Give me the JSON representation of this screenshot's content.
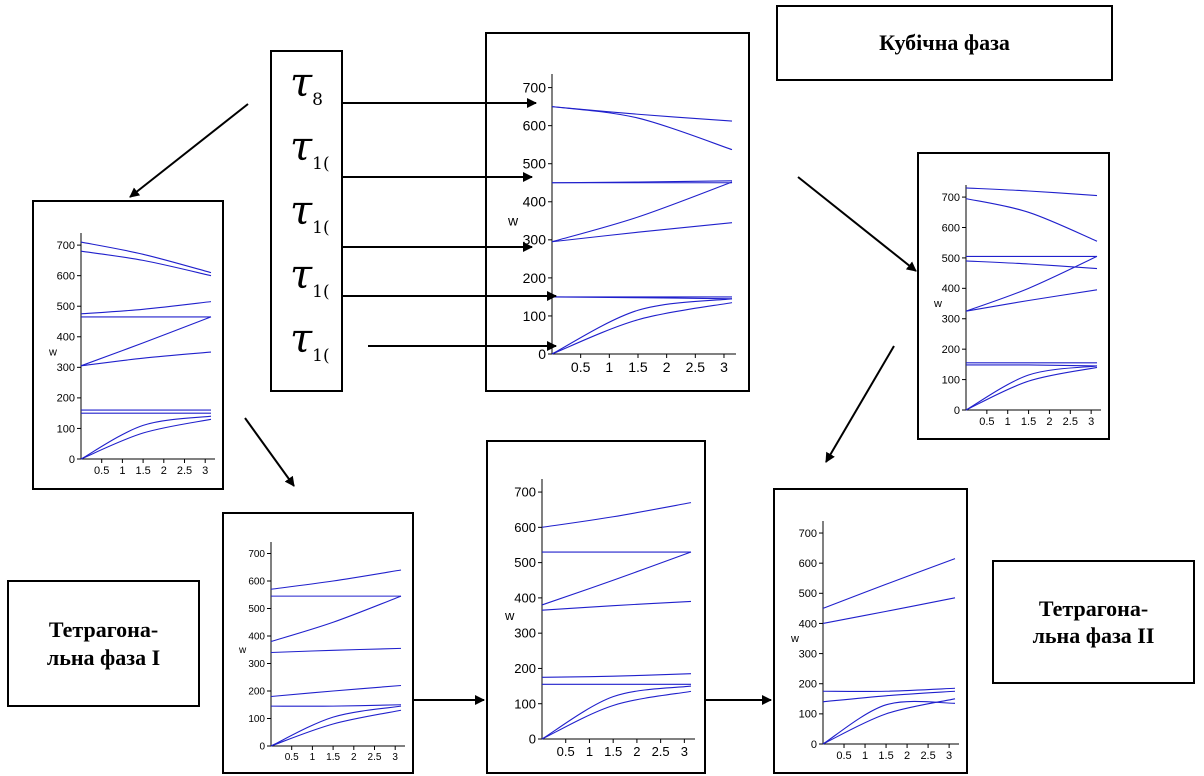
{
  "labels": {
    "cubic": "Кубічна  фаза",
    "tetragonal_1": "Тетрагона-\nльна фаза I",
    "tetragonal_2": "Тетрагона-\nльна фаза II"
  },
  "taus": [
    {
      "symbol": "τ",
      "sub": "8"
    },
    {
      "symbol": "τ",
      "sub": "1("
    },
    {
      "symbol": "τ",
      "sub": "1("
    },
    {
      "symbol": "τ",
      "sub": "1("
    },
    {
      "symbol": "τ",
      "sub": "1("
    }
  ],
  "colors": {
    "curve": "#2020cc",
    "axis": "#000000",
    "frame": "#000000"
  },
  "chart_data": [
    {
      "id": "cubic",
      "type": "line",
      "ylabel": "w",
      "ylim": [
        0,
        720
      ],
      "xlim": [
        0,
        3.14
      ],
      "yticks": [
        "0",
        "100",
        "200",
        "300",
        "400",
        "500",
        "600",
        "700"
      ],
      "xticks": [
        "0.5",
        "1",
        "1.5",
        "2",
        "2.5",
        "3"
      ],
      "series": [
        {
          "values": [
            [
              0,
              650
            ],
            [
              1.5,
              630
            ],
            [
              3.14,
              612
            ]
          ]
        },
        {
          "values": [
            [
              0,
              650
            ],
            [
              1.5,
              620
            ],
            [
              3.14,
              537
            ]
          ]
        },
        {
          "values": [
            [
              0,
              450
            ],
            [
              1.5,
              450
            ],
            [
              3.14,
              450
            ]
          ]
        },
        {
          "values": [
            [
              0,
              450
            ],
            [
              1.5,
              452
            ],
            [
              3.14,
              455
            ]
          ]
        },
        {
          "values": [
            [
              0,
              295
            ],
            [
              1.5,
              360
            ],
            [
              3.14,
              452
            ]
          ]
        },
        {
          "values": [
            [
              0,
              295
            ],
            [
              1.5,
              320
            ],
            [
              3.14,
              345
            ]
          ]
        },
        {
          "values": [
            [
              0,
              150
            ],
            [
              1.5,
              150
            ],
            [
              3.14,
              150
            ]
          ]
        },
        {
          "values": [
            [
              0,
              150
            ],
            [
              1.5,
              148
            ],
            [
              3.14,
              145
            ]
          ]
        },
        {
          "values": [
            [
              0,
              0
            ],
            [
              1.5,
              115
            ],
            [
              3.14,
              145
            ]
          ]
        },
        {
          "values": [
            [
              0,
              0
            ],
            [
              1.5,
              90
            ],
            [
              3.14,
              135
            ]
          ]
        }
      ]
    },
    {
      "id": "tetragonal_1",
      "type": "line",
      "ylabel": "w",
      "ylim": [
        0,
        720
      ],
      "xlim": [
        0,
        3.14
      ],
      "yticks": [
        "0",
        "100",
        "200",
        "300",
        "400",
        "500",
        "600",
        "700"
      ],
      "xticks": [
        "0.5",
        "1",
        "1.5",
        "2",
        "2.5",
        "3"
      ],
      "series": [
        {
          "values": [
            [
              0,
              710
            ],
            [
              1.5,
              670
            ],
            [
              3.14,
              610
            ]
          ]
        },
        {
          "values": [
            [
              0,
              680
            ],
            [
              1.5,
              650
            ],
            [
              3.14,
              600
            ]
          ]
        },
        {
          "values": [
            [
              0,
              475
            ],
            [
              1.5,
              490
            ],
            [
              3.14,
              515
            ]
          ]
        },
        {
          "values": [
            [
              0,
              465
            ],
            [
              1.5,
              465
            ],
            [
              3.14,
              465
            ]
          ]
        },
        {
          "values": [
            [
              0,
              305
            ],
            [
              1.5,
              380
            ],
            [
              3.14,
              465
            ]
          ]
        },
        {
          "values": [
            [
              0,
              305
            ],
            [
              1.5,
              330
            ],
            [
              3.14,
              350
            ]
          ]
        },
        {
          "values": [
            [
              0,
              160
            ],
            [
              1.5,
              160
            ],
            [
              3.14,
              160
            ]
          ]
        },
        {
          "values": [
            [
              0,
              150
            ],
            [
              1.5,
              150
            ],
            [
              3.14,
              150
            ]
          ]
        },
        {
          "values": [
            [
              0,
              0
            ],
            [
              1.5,
              110
            ],
            [
              3.14,
              140
            ]
          ]
        },
        {
          "values": [
            [
              0,
              0
            ],
            [
              1.5,
              85
            ],
            [
              3.14,
              130
            ]
          ]
        }
      ]
    },
    {
      "id": "tetragonal_1b",
      "type": "line",
      "ylabel": "w",
      "ylim": [
        0,
        720
      ],
      "xlim": [
        0,
        3.14
      ],
      "yticks": [
        "0",
        "100",
        "200",
        "300",
        "400",
        "500",
        "600",
        "700"
      ],
      "xticks": [
        "0.5",
        "1",
        "1.5",
        "2",
        "2.5",
        "3"
      ],
      "series": [
        {
          "values": [
            [
              0,
              570
            ],
            [
              1.5,
              600
            ],
            [
              3.14,
              640
            ]
          ]
        },
        {
          "values": [
            [
              0,
              545
            ],
            [
              1.5,
              545
            ],
            [
              3.14,
              545
            ]
          ]
        },
        {
          "values": [
            [
              0,
              380
            ],
            [
              1.5,
              450
            ],
            [
              3.14,
              545
            ]
          ]
        },
        {
          "values": [
            [
              0,
              340
            ],
            [
              1.5,
              348
            ],
            [
              3.14,
              355
            ]
          ]
        },
        {
          "values": [
            [
              0,
              180
            ],
            [
              1.5,
              200
            ],
            [
              3.14,
              220
            ]
          ]
        },
        {
          "values": [
            [
              0,
              145
            ],
            [
              1.5,
              145
            ],
            [
              3.14,
              150
            ]
          ]
        },
        {
          "values": [
            [
              0,
              0
            ],
            [
              1.5,
              105
            ],
            [
              3.14,
              145
            ]
          ]
        },
        {
          "values": [
            [
              0,
              0
            ],
            [
              1.5,
              80
            ],
            [
              3.14,
              130
            ]
          ]
        }
      ]
    },
    {
      "id": "middle_bottom",
      "type": "line",
      "ylabel": "w",
      "ylim": [
        0,
        720
      ],
      "xlim": [
        0,
        3.14
      ],
      "yticks": [
        "0",
        "100",
        "200",
        "300",
        "400",
        "500",
        "600",
        "700"
      ],
      "xticks": [
        "0.5",
        "1",
        "1.5",
        "2",
        "2.5",
        "3"
      ],
      "series": [
        {
          "values": [
            [
              0,
              600
            ],
            [
              1.5,
              630
            ],
            [
              3.14,
              670
            ]
          ]
        },
        {
          "values": [
            [
              0,
              530
            ],
            [
              1.5,
              530
            ],
            [
              3.14,
              530
            ]
          ]
        },
        {
          "values": [
            [
              0,
              380
            ],
            [
              1.5,
              450
            ],
            [
              3.14,
              530
            ]
          ]
        },
        {
          "values": [
            [
              0,
              365
            ],
            [
              1.5,
              378
            ],
            [
              3.14,
              390
            ]
          ]
        },
        {
          "values": [
            [
              0,
              175
            ],
            [
              1.5,
              178
            ],
            [
              3.14,
              185
            ]
          ]
        },
        {
          "values": [
            [
              0,
              155
            ],
            [
              1.5,
              155
            ],
            [
              3.14,
              155
            ]
          ]
        },
        {
          "values": [
            [
              0,
              0
            ],
            [
              1.5,
              120
            ],
            [
              3.14,
              150
            ]
          ]
        },
        {
          "values": [
            [
              0,
              0
            ],
            [
              1.5,
              95
            ],
            [
              3.14,
              135
            ]
          ]
        }
      ]
    },
    {
      "id": "right_top",
      "type": "line",
      "ylabel": "w",
      "ylim": [
        0,
        720
      ],
      "xlim": [
        0,
        3.14
      ],
      "yticks": [
        "0",
        "100",
        "200",
        "300",
        "400",
        "500",
        "600",
        "700"
      ],
      "xticks": [
        "0.5",
        "1",
        "1.5",
        "2",
        "2.5",
        "3"
      ],
      "series": [
        {
          "values": [
            [
              0,
              730
            ],
            [
              1.5,
              720
            ],
            [
              3.14,
              705
            ]
          ]
        },
        {
          "values": [
            [
              0,
              695
            ],
            [
              1.5,
              650
            ],
            [
              3.14,
              555
            ]
          ]
        },
        {
          "values": [
            [
              0,
              505
            ],
            [
              1.5,
              505
            ],
            [
              3.14,
              505
            ]
          ]
        },
        {
          "values": [
            [
              0,
              490
            ],
            [
              1.5,
              480
            ],
            [
              3.14,
              465
            ]
          ]
        },
        {
          "values": [
            [
              0,
              325
            ],
            [
              1.5,
              400
            ],
            [
              3.14,
              505
            ]
          ]
        },
        {
          "values": [
            [
              0,
              325
            ],
            [
              1.5,
              360
            ],
            [
              3.14,
              395
            ]
          ]
        },
        {
          "values": [
            [
              0,
              155
            ],
            [
              1.5,
              155
            ],
            [
              3.14,
              155
            ]
          ]
        },
        {
          "values": [
            [
              0,
              148
            ],
            [
              1.5,
              148
            ],
            [
              3.14,
              145
            ]
          ]
        },
        {
          "values": [
            [
              0,
              0
            ],
            [
              1.5,
              115
            ],
            [
              3.14,
              145
            ]
          ]
        },
        {
          "values": [
            [
              0,
              0
            ],
            [
              1.5,
              95
            ],
            [
              3.14,
              140
            ]
          ]
        }
      ]
    },
    {
      "id": "tetragonal_2",
      "type": "line",
      "ylabel": "w",
      "ylim": [
        0,
        720
      ],
      "xlim": [
        0,
        3.14
      ],
      "yticks": [
        "0",
        "100",
        "200",
        "300",
        "400",
        "500",
        "600",
        "700"
      ],
      "xticks": [
        "0.5",
        "1",
        "1.5",
        "2",
        "2.5",
        "3"
      ],
      "series": [
        {
          "values": [
            [
              0,
              450
            ],
            [
              1.5,
              530
            ],
            [
              3.14,
              615
            ]
          ]
        },
        {
          "values": [
            [
              0,
              400
            ],
            [
              1.5,
              440
            ],
            [
              3.14,
              485
            ]
          ]
        },
        {
          "values": [
            [
              0,
              175
            ],
            [
              1.5,
              175
            ],
            [
              3.14,
              185
            ]
          ]
        },
        {
          "values": [
            [
              0,
              140
            ],
            [
              1.5,
              160
            ],
            [
              3.14,
              175
            ]
          ]
        },
        {
          "values": [
            [
              0,
              0
            ],
            [
              1.5,
              130
            ],
            [
              3.14,
              135
            ]
          ]
        },
        {
          "values": [
            [
              0,
              0
            ],
            [
              1.5,
              100
            ],
            [
              3.14,
              150
            ]
          ]
        }
      ]
    }
  ]
}
